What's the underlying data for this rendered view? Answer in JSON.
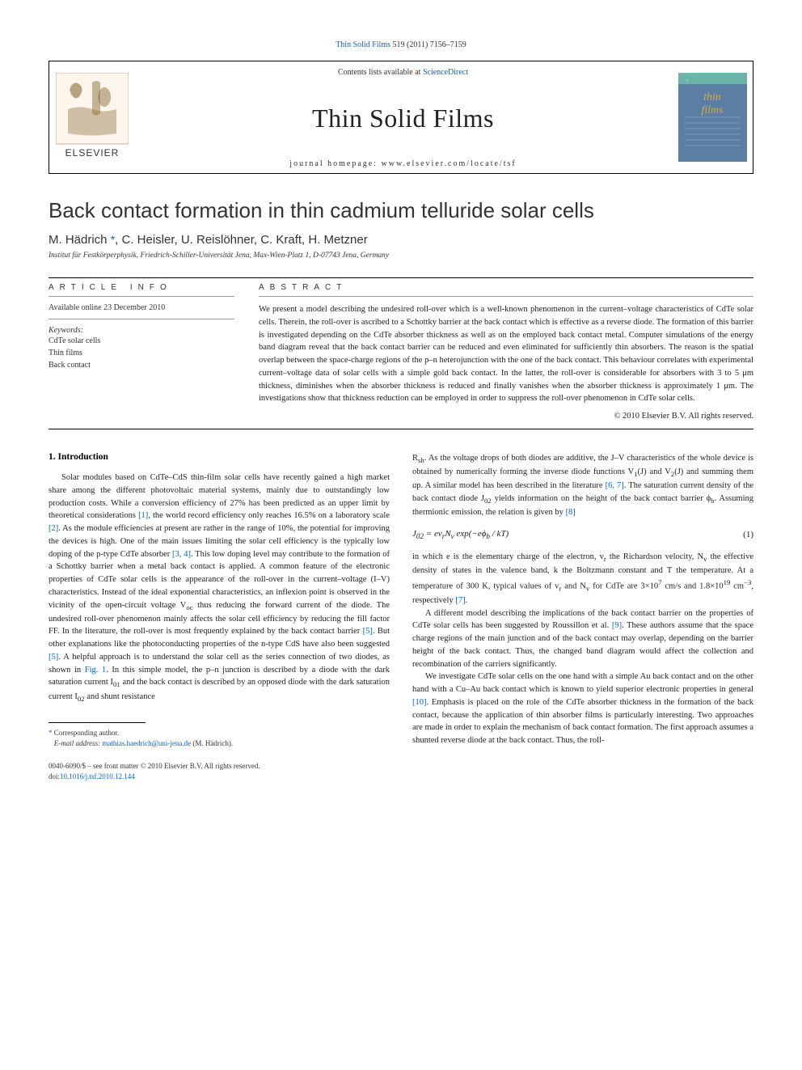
{
  "topLink": {
    "journal": "Thin Solid Films",
    "citation": "519 (2011) 7156–7159"
  },
  "headerBox": {
    "contentsPrefix": "Contents lists available at ",
    "contentsLink": "ScienceDirect",
    "journalName": "Thin Solid Films",
    "homepage": "journal homepage: www.elsevier.com/locate/tsf",
    "elsevierLabel": "ELSEVIER",
    "coverText": "thin films"
  },
  "article": {
    "title": "Back contact formation in thin cadmium telluride solar cells",
    "authorsHtml": "M. Hädrich <span class='star'>*</span>, C. Heisler, U. Reislöhner, C. Kraft, H. Metzner",
    "affiliation": "Institut für Festkörperphysik, Friedrich-Schiller-Universität Jena, Max-Wien-Platz 1, D-07743 Jena, Germany"
  },
  "info": {
    "header": "ARTICLE INFO",
    "date": "Available online 23 December 2010",
    "keywordsLabel": "Keywords:",
    "keywords": [
      "CdTe solar cells",
      "Thin films",
      "Back contact"
    ]
  },
  "abstract": {
    "header": "ABSTRACT",
    "text": "We present a model describing the undesired roll-over which is a well-known phenomenon in the current–voltage characteristics of CdTe solar cells. Therein, the roll-over is ascribed to a Schottky barrier at the back contact which is effective as a reverse diode. The formation of this barrier is investigated depending on the CdTe absorber thickness as well as on the employed back contact metal. Computer simulations of the energy band diagram reveal that the back contact barrier can be reduced and even eliminated for sufficiently thin absorbers. The reason is the spatial overlap between the space-charge regions of the p–n heterojunction with the one of the back contact. This behaviour correlates with experimental current–voltage data of solar cells with a simple gold back contact. In the latter, the roll-over is considerable for absorbers with 3 to 5 μm thickness, diminishes when the absorber thickness is reduced and finally vanishes when the absorber thickness is approximately 1 μm. The investigations show that thickness reduction can be employed in order to suppress the roll-over phenomenon in CdTe solar cells.",
    "copyright": "© 2010 Elsevier B.V. All rights reserved."
  },
  "section1": {
    "heading": "1. Introduction",
    "p1": "Solar modules based on CdTe–CdS thin-film solar cells have recently gained a high market share among the different photovoltaic material systems, mainly due to outstandingly low production costs. While a conversion efficiency of 27% has been predicted as an upper limit by theoretical considerations <span class='cite-link'>[1]</span>, the world record efficiency only reaches 16.5% on a laboratory scale <span class='cite-link'>[2]</span>. As the module efficiencies at present are rather in the range of 10%, the potential for improving the devices is high. One of the main issues limiting the solar cell efficiency is the typically low doping of the p-type CdTe absorber <span class='cite-link'>[3, 4]</span>. This low doping level may contribute to the formation of a Schottky barrier when a metal back contact is applied. A common feature of the electronic properties of CdTe solar cells is the appearance of the roll-over in the current–voltage (I–V) characteristics. Instead of the ideal exponential characteristics, an inflexion point is observed in the vicinity of the open-circuit voltage V<sub>oc</sub> thus reducing the forward current of the diode. The undesired roll-over phenomenon mainly affects the solar cell efficiency by reducing the fill factor FF. In the literature, the roll-over is most frequently explained by the back contact barrier <span class='cite-link'>[5]</span>. But other explanations like the photoconducting properties of the n-type CdS have also been suggested <span class='cite-link'>[5]</span>. A helpful approach is to understand the solar cell as the series connection of two diodes, as shown in <span class='cite-link'>Fig. 1</span>. In this simple model, the p–n junction is described by a diode with the dark saturation current I<sub>01</sub> and the back contact is described by an opposed diode with the dark saturation current I<sub>02</sub> and shunt resistance"
  },
  "col2": {
    "p1": "R<sub>sh</sub>. As the voltage drops of both diodes are additive, the J–V characteristics of the whole device is obtained by numerically forming the inverse diode functions V<sub>1</sub>(J) and V<sub>2</sub>(J) and summing them up. A similar model has been described in the literature <span class='cite-link'>[6, 7]</span>. The saturation current density of the back contact diode J<sub>02</sub> yields information on the height of the back contact barrier ϕ<sub>b</sub>. Assuming thermionic emission, the relation is given by <span class='cite-link'>[8]</span>",
    "equation": "J<sub>02</sub> = ev<sub>r</sub>N<sub>v</sub> <i>exp</i>(−eϕ<sub>b</sub> / kT)",
    "eqNum": "(1)",
    "p2": "in which e is the elementary charge of the electron, v<sub>r</sub> the Richardson velocity, N<sub>v</sub> the effective density of states in the valence band, k the Boltzmann constant and T the temperature. At a temperature of 300 K, typical values of v<sub>r</sub> and N<sub>v</sub> for CdTe are 3×10<sup>7</sup> cm/s and 1.8×10<sup>19</sup> cm<sup>−3</sup>, respectively <span class='cite-link'>[7]</span>.",
    "p3": "A different model describing the implications of the back contact barrier on the properties of CdTe solar cells has been suggested by Roussillon et al. <span class='cite-link'>[9]</span>. These authors assume that the space charge regions of the main junction and of the back contact may overlap, depending on the barrier height of the back contact. Thus, the changed band diagram would affect the collection and recombination of the carriers significantly.",
    "p4": "We investigate CdTe solar cells on the one hand with a simple Au back contact and on the other hand with a Cu–Au back contact which is known to yield superior electronic properties in general <span class='cite-link'>[10]</span>. Emphasis is placed on the role of the CdTe absorber thickness in the formation of the back contact, because the application of thin absorber films is particularly interesting. Two approaches are made in order to explain the mechanism of back contact formation. The first approach assumes a shunted reverse diode at the back contact. Thus, the roll-"
  },
  "footnote": {
    "corresponding": "Corresponding author.",
    "emailLabel": "E-mail address:",
    "email": "mathias.haedrich@uni-jena.de",
    "emailAuthor": "(M. Hädrich)."
  },
  "doi": {
    "line1": "0040-6090/$ – see front matter © 2010 Elsevier B.V. All rights reserved.",
    "line2Prefix": "doi:",
    "doiLink": "10.1016/j.tsf.2010.12.144"
  },
  "colors": {
    "link": "#0066cc",
    "text": "#222222",
    "elsevierOrange": "#e8710a",
    "coverBlue": "#5b7fa3",
    "coverTeal": "#6bb5a8"
  }
}
